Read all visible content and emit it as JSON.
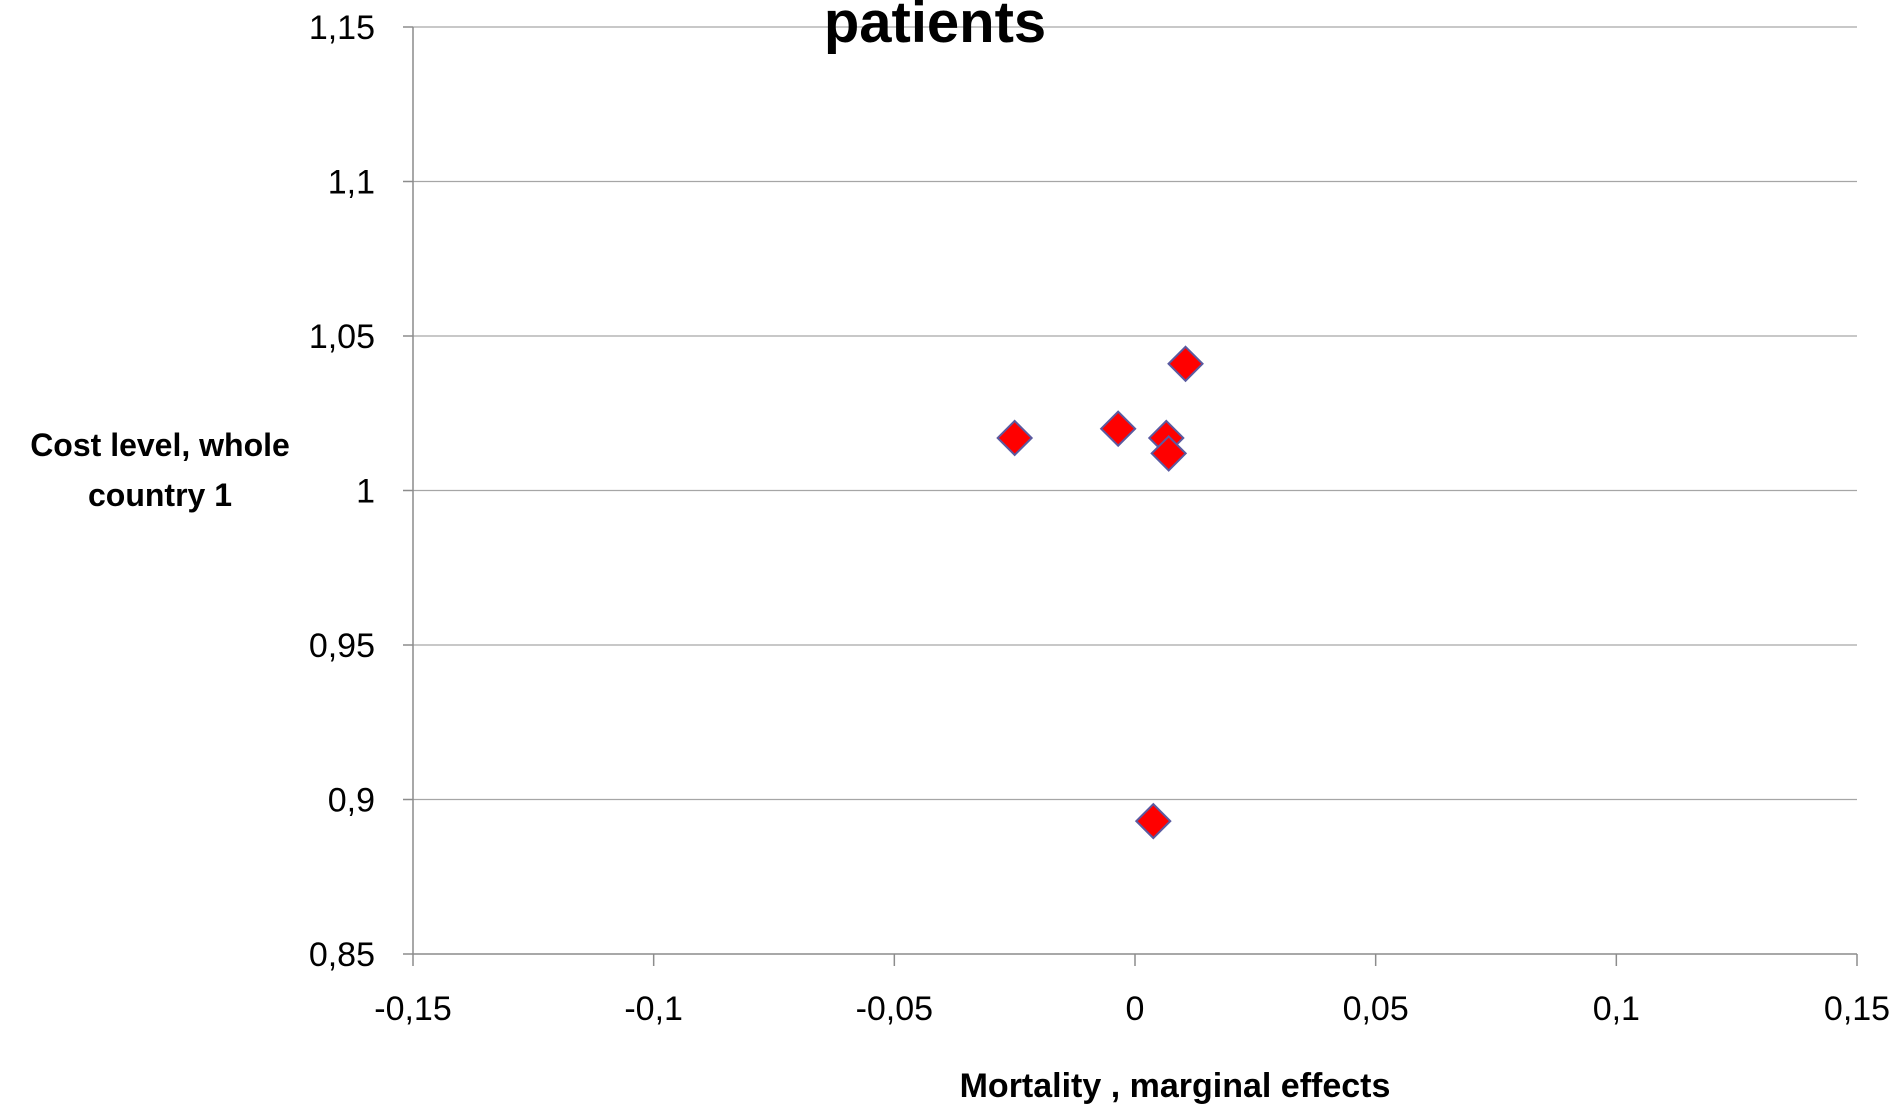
{
  "chart_data": {
    "type": "scatter",
    "title": "patients",
    "xlabel": "Mortality  , marginal effects",
    "ylabel_lines": [
      "Cost level, whole",
      "country  1"
    ],
    "xlim": [
      -0.15,
      0.15
    ],
    "ylim": [
      0.85,
      1.15
    ],
    "x_ticks": [
      -0.15,
      -0.1,
      -0.05,
      0,
      0.05,
      0.1,
      0.15
    ],
    "x_tick_labels": [
      "-0,15",
      "-0,1",
      "-0,05",
      "0",
      "0,05",
      "0,1",
      "0,15"
    ],
    "y_ticks": [
      0.85,
      0.9,
      0.95,
      1,
      1.05,
      1.1,
      1.15
    ],
    "y_tick_labels": [
      "0,85",
      "0,9",
      "0,95",
      "1",
      "1,05",
      "1,1",
      "1,15"
    ],
    "grid": "horizontal",
    "marker": "diamond",
    "marker_color": "#ff0000",
    "marker_edge_color": "#5a5aa0",
    "points": [
      {
        "x": -0.025,
        "y": 1.017
      },
      {
        "x": -0.0035,
        "y": 1.02
      },
      {
        "x": 0.0065,
        "y": 1.017
      },
      {
        "x": 0.007,
        "y": 1.012
      },
      {
        "x": 0.0105,
        "y": 1.041
      },
      {
        "x": 0.0038,
        "y": 0.893
      }
    ]
  }
}
